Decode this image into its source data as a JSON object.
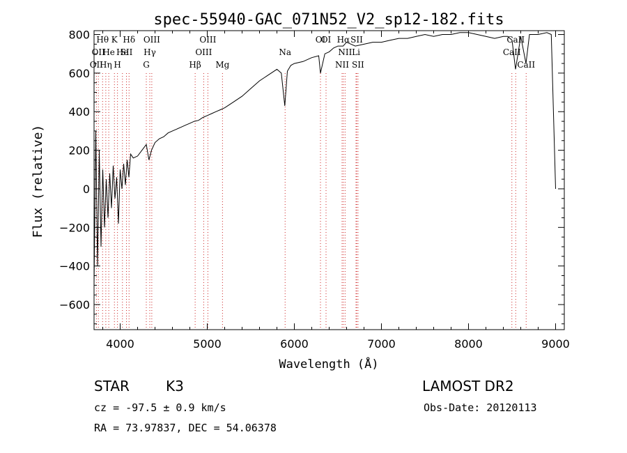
{
  "chart_data": {
    "type": "line",
    "title": "spec-55940-GAC_071N52_V2_sp12-182.fits",
    "xlabel": "Wavelength (Å)",
    "ylabel": "Flux (relative)",
    "xlim": [
      3700,
      9100
    ],
    "ylim": [
      -730,
      820
    ],
    "xticks": [
      4000,
      5000,
      6000,
      7000,
      8000,
      9000
    ],
    "yticks": [
      -600,
      -400,
      -200,
      0,
      200,
      400,
      600,
      800
    ],
    "grid": false,
    "series": [
      {
        "color": "#000000",
        "x": [
          3700,
          3720,
          3740,
          3760,
          3780,
          3800,
          3820,
          3840,
          3860,
          3880,
          3900,
          3920,
          3940,
          3960,
          3980,
          4000,
          4020,
          4040,
          4060,
          4080,
          4100,
          4120,
          4150,
          4200,
          4250,
          4300,
          4330,
          4360,
          4400,
          4450,
          4500,
          4550,
          4600,
          4650,
          4700,
          4750,
          4800,
          4850,
          4900,
          4950,
          5000,
          5050,
          5100,
          5150,
          5200,
          5300,
          5400,
          5500,
          5600,
          5700,
          5800,
          5850,
          5890,
          5920,
          5960,
          6000,
          6100,
          6200,
          6280,
          6300,
          6350,
          6400,
          6450,
          6500,
          6560,
          6600,
          6700,
          6800,
          6900,
          7000,
          7100,
          7200,
          7300,
          7400,
          7500,
          7600,
          7700,
          7800,
          7900,
          8000,
          8100,
          8200,
          8300,
          8400,
          8450,
          8500,
          8540,
          8600,
          8660,
          8700,
          8800,
          8900,
          8950,
          9000
        ],
        "y": [
          -500,
          300,
          -400,
          200,
          -300,
          100,
          -200,
          50,
          -150,
          80,
          -100,
          120,
          -50,
          60,
          -180,
          100,
          0,
          130,
          20,
          150,
          60,
          180,
          160,
          170,
          200,
          230,
          150,
          200,
          240,
          260,
          270,
          290,
          300,
          310,
          320,
          330,
          340,
          350,
          355,
          370,
          380,
          390,
          400,
          410,
          420,
          450,
          480,
          520,
          560,
          590,
          620,
          600,
          430,
          610,
          640,
          650,
          660,
          680,
          690,
          600,
          700,
          710,
          730,
          740,
          740,
          760,
          740,
          750,
          760,
          760,
          770,
          780,
          780,
          790,
          800,
          790,
          800,
          800,
          810,
          810,
          800,
          790,
          780,
          790,
          790,
          770,
          620,
          790,
          650,
          800,
          800,
          810,
          800,
          0
        ]
      }
    ],
    "lines": [
      {
        "x": 3727,
        "labels": [
          "OII"
        ],
        "row": 2
      },
      {
        "x": 3750,
        "labels": [
          "OII"
        ],
        "row": 1
      },
      {
        "x": 3798,
        "labels": [
          "Hθ"
        ],
        "row": 0
      },
      {
        "x": 3835,
        "labels": [
          "Hη"
        ],
        "row": 2
      },
      {
        "x": 3869,
        "labels": [
          "He"
        ],
        "row": 1
      },
      {
        "x": 3934,
        "labels": [
          "K"
        ],
        "row": 0
      },
      {
        "x": 3969,
        "labels": [
          "H"
        ],
        "row": 2
      },
      {
        "x": 4026,
        "labels": [
          "He"
        ],
        "row": 1
      },
      {
        "x": 4072,
        "labels": [
          "SII"
        ],
        "row": 1
      },
      {
        "x": 4102,
        "labels": [
          "Hδ"
        ],
        "row": 0
      },
      {
        "x": 4300,
        "labels": [
          "G"
        ],
        "row": 2
      },
      {
        "x": 4340,
        "labels": [
          "Hγ"
        ],
        "row": 1
      },
      {
        "x": 4363,
        "labels": [
          "OIII"
        ],
        "row": 0
      },
      {
        "x": 4861,
        "labels": [
          "Hβ"
        ],
        "row": 2
      },
      {
        "x": 4959,
        "labels": [
          "OIII"
        ],
        "row": 1
      },
      {
        "x": 5007,
        "labels": [
          "OIII"
        ],
        "row": 0
      },
      {
        "x": 5175,
        "labels": [
          "Mg"
        ],
        "row": 2
      },
      {
        "x": 5894,
        "labels": [
          "Na"
        ],
        "row": 1
      },
      {
        "x": 6300,
        "labels": [
          "OI"
        ],
        "row": 0
      },
      {
        "x": 6364,
        "labels": [
          "OI"
        ],
        "row": 0
      },
      {
        "x": 6548,
        "labels": [
          "NII"
        ],
        "row": 2
      },
      {
        "x": 6563,
        "labels": [
          "Hα"
        ],
        "row": 0
      },
      {
        "x": 6583,
        "labels": [
          "NII"
        ],
        "row": 1
      },
      {
        "x": 6708,
        "labels": [
          "Li"
        ],
        "row": 1
      },
      {
        "x": 6716,
        "labels": [
          "SII"
        ],
        "row": 0
      },
      {
        "x": 6731,
        "labels": [
          "SII"
        ],
        "row": 2
      },
      {
        "x": 8498,
        "labels": [
          "CaII"
        ],
        "row": 1
      },
      {
        "x": 8542,
        "labels": [
          "CaII"
        ],
        "row": 0
      },
      {
        "x": 8662,
        "labels": [
          "CaII"
        ],
        "row": 2
      }
    ],
    "line_color": "#cc2222"
  },
  "info": {
    "class": "STAR",
    "subclass": "K3",
    "survey": "LAMOST DR2",
    "redshift": "cz = -97.5 ± 0.9 km/s",
    "obsdate": "Obs-Date: 20120113",
    "coords": "RA =  73.97837, DEC =  54.06378"
  }
}
